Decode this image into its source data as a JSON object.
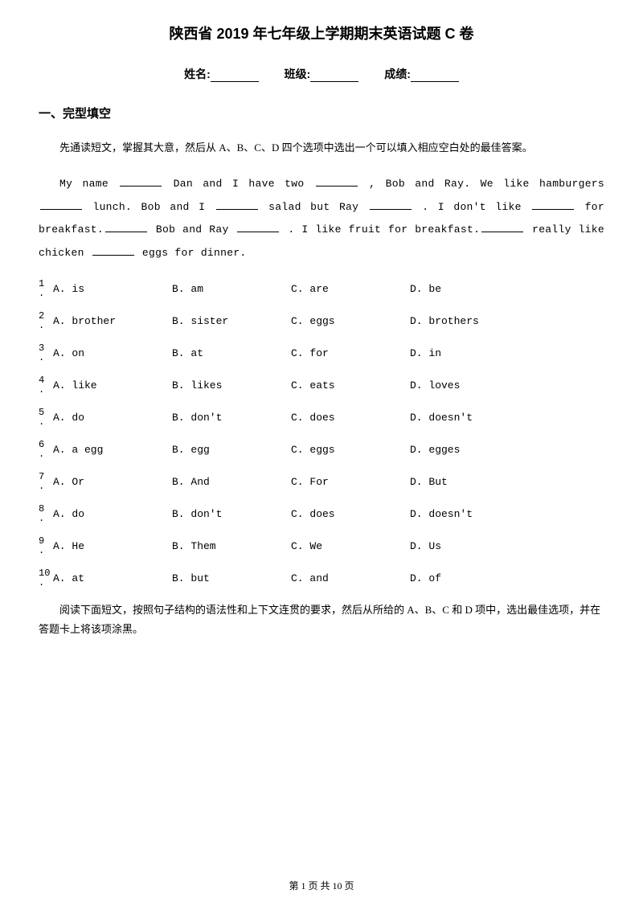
{
  "title": "陕西省 2019 年七年级上学期期末英语试题 C 卷",
  "info": {
    "name_label": "姓名:",
    "class_label": "班级:",
    "score_label": "成绩:"
  },
  "section1": {
    "heading": "一、完型填空",
    "instruction": "先通读短文，掌握其大意，然后从 A、B、C、D 四个选项中选出一个可以填入相应空白处的最佳答案。",
    "passage_parts": [
      "My name ",
      " Dan and I have two ",
      " , Bob and Ray. We like hamburgers ",
      " lunch. Bob and I ",
      " salad but Ray ",
      " . I don't like ",
      " for breakfast.",
      " Bob and Ray ",
      " . I like fruit for breakfast.",
      " really like chicken ",
      " eggs for dinner."
    ],
    "questions": [
      {
        "num": "1",
        "a": "A. is",
        "b": "B. am",
        "c": "C. are",
        "d": "D. be"
      },
      {
        "num": "2",
        "a": "A. brother",
        "b": "B. sister",
        "c": "C. eggs",
        "d": "D. brothers"
      },
      {
        "num": "3",
        "a": "A. on",
        "b": "B. at",
        "c": "C. for",
        "d": "D. in"
      },
      {
        "num": "4",
        "a": "A. like",
        "b": "B. likes",
        "c": "C. eats",
        "d": "D. loves"
      },
      {
        "num": "5",
        "a": "A. do",
        "b": "B. don't",
        "c": "C. does",
        "d": "D. doesn't"
      },
      {
        "num": "6",
        "a": "A. a egg",
        "b": "B. egg",
        "c": "C. eggs",
        "d": "D. egges"
      },
      {
        "num": "7",
        "a": "A. Or",
        "b": "B. And",
        "c": "C. For",
        "d": "D. But"
      },
      {
        "num": "8",
        "a": "A. do",
        "b": "B. don't",
        "c": "C. does",
        "d": "D. doesn't"
      },
      {
        "num": "9",
        "a": "A. He",
        "b": "B. Them",
        "c": "C. We",
        "d": "D. Us"
      },
      {
        "num": "10",
        "a": "A. at",
        "b": "B. but",
        "c": "C. and",
        "d": "D. of"
      }
    ],
    "instruction2": "阅读下面短文，按照句子结构的语法性和上下文连贯的要求，然后从所给的 A、B、C 和 D 项中，选出最佳选项，并在答题卡上将该项涂黑。"
  },
  "footer": "第 1 页 共 10 页"
}
